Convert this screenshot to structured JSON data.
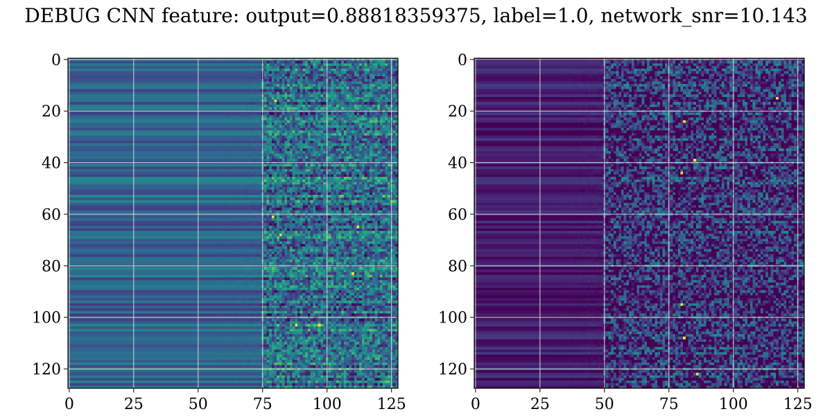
{
  "figure": {
    "title": "DEBUG CNN feature: output=0.88818359375, label=1.0, network_snr=10.143"
  },
  "chart_data": [
    {
      "type": "heatmap",
      "colormap": "viridis",
      "grid": true,
      "gridColor": "#d9d9d9",
      "xlim": [
        -0.5,
        127.5
      ],
      "ylim": [
        127.5,
        -0.5
      ],
      "shape": [
        128,
        128
      ],
      "xticks": [
        0,
        25,
        50,
        75,
        100,
        125
      ],
      "yticks": [
        0,
        20,
        40,
        60,
        80,
        100,
        120
      ],
      "xlabel": "",
      "ylabel": "",
      "values_note": "",
      "profile": {
        "base_level": 0.32,
        "noise_start_column": 75,
        "left_row_variation": 0.14,
        "right_noise_amplitude": 0.26,
        "hot_spots": [
          [
            61,
            79
          ],
          [
            65,
            112
          ],
          [
            68,
            82
          ],
          [
            103,
            88
          ],
          [
            103,
            97
          ],
          [
            83,
            110
          ],
          [
            16,
            80
          ]
        ]
      }
    },
    {
      "type": "heatmap",
      "colormap": "viridis",
      "grid": true,
      "gridColor": "#d9d9d9",
      "xlim": [
        -0.5,
        127.5
      ],
      "ylim": [
        127.5,
        -0.5
      ],
      "shape": [
        128,
        128
      ],
      "xticks": [
        0,
        25,
        50,
        75,
        100,
        125
      ],
      "yticks": [
        0,
        20,
        40,
        60,
        80,
        100,
        120
      ],
      "xlabel": "",
      "ylabel": "",
      "profile": {
        "base_level": 0.08,
        "noise_start_column": 50,
        "left_row_variation": 0.1,
        "right_noise_amplitude": 0.3,
        "hot_spots": [
          [
            15,
            117
          ],
          [
            24,
            81
          ],
          [
            44,
            80
          ],
          [
            95,
            80
          ],
          [
            108,
            81
          ],
          [
            122,
            86
          ],
          [
            39,
            85
          ]
        ]
      }
    }
  ]
}
